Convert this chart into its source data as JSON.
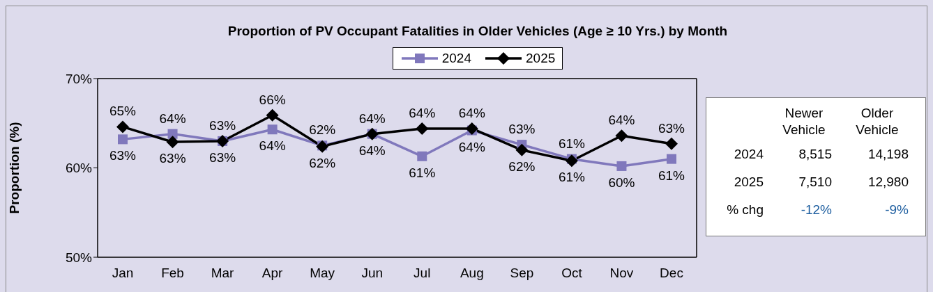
{
  "chart_data": [
    {
      "type": "line",
      "title": "Proportion of PV Occupant Fatalities in Older Vehicles (Age ≥ 10 Yrs.) by Month",
      "ylabel": "Proportion (%)",
      "categories": [
        "Jan",
        "Feb",
        "Mar",
        "Apr",
        "May",
        "Jun",
        "Jul",
        "Aug",
        "Sep",
        "Oct",
        "Nov",
        "Dec"
      ],
      "series": [
        {
          "name": "2024",
          "color": "#8078bc",
          "marker": "square",
          "values": [
            63.2,
            63.8,
            63.0,
            64.3,
            62.5,
            63.8,
            61.3,
            64.2,
            62.6,
            61.0,
            60.2,
            61.0
          ],
          "value_labels": [
            "63%",
            "64%",
            "63%",
            "64%",
            "62%",
            "64%",
            "61%",
            "64%",
            "63%",
            "61%",
            "60%",
            "61%"
          ]
        },
        {
          "name": "2025",
          "color": "#000000",
          "marker": "diamond",
          "values": [
            64.6,
            62.9,
            63.0,
            65.9,
            62.4,
            63.8,
            64.4,
            64.4,
            62.0,
            60.8,
            63.6,
            62.7
          ],
          "value_labels": [
            "65%",
            "63%",
            "63%",
            "66%",
            "62%",
            "64%",
            "64%",
            "64%",
            "62%",
            "61%",
            "64%",
            "63%"
          ]
        }
      ],
      "ylim": [
        50,
        70
      ],
      "yticks": [
        {
          "value": 50,
          "label": "50%"
        },
        {
          "value": 60,
          "label": "60%"
        },
        {
          "value": 70,
          "label": "70%"
        }
      ],
      "legend": "top",
      "line_style": "solid"
    },
    {
      "type": "other",
      "categories": [
        "Newer Vehicle",
        "Older Vehicle"
      ],
      "y_categories": [
        "2024",
        "2025",
        "% chg"
      ],
      "cell_labels": [
        [
          "8,515",
          "14,198"
        ],
        [
          "7,510",
          "12,980"
        ],
        [
          "-12%",
          "-9%"
        ]
      ]
    }
  ]
}
